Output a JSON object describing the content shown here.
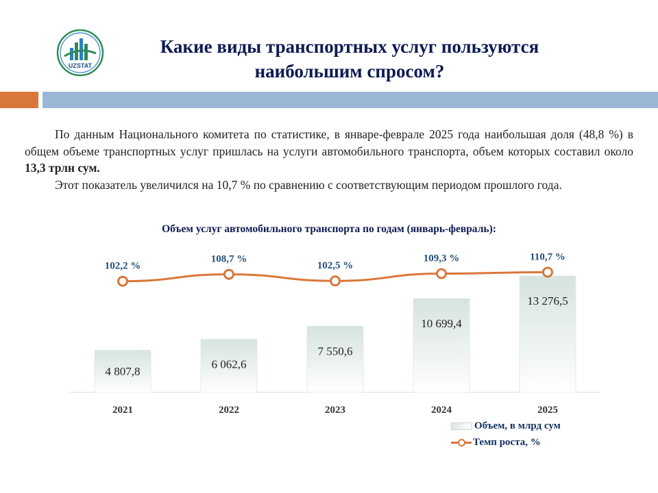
{
  "header": {
    "logo_text": "UZSTAT",
    "title_line1": "Какие виды транспортных услуг пользуются",
    "title_line2": "наибольшим спросом?"
  },
  "body": {
    "p1_part1": "По данным Национального комитета по статистике, в январе-феврале 2025 года наибольшая доля (48,8 %) в общем объеме транспортных услуг пришлась на услуги автомобильного транспорта, объем которых составил около ",
    "p1_bold": "13,3 трлн сум.",
    "p2": "Этот показатель увеличился на 10,7 % по сравнению с соответствующим периодом прошлого года."
  },
  "chart_data": {
    "type": "bar",
    "title": "Объем услуг автомобильного транспорта  по годам (январь-февраль):",
    "categories": [
      "2021",
      "2022",
      "2023",
      "2024",
      "2025"
    ],
    "series": [
      {
        "name": "Объем, в млрд сум",
        "type": "bar",
        "values": [
          4807.8,
          6062.6,
          7550.6,
          10699.4,
          13276.5
        ],
        "labels": [
          "4 807,8",
          "6 062,6",
          "7 550,6",
          "10 699,4",
          "13 276,5"
        ]
      },
      {
        "name": "Темп роста, %",
        "type": "line",
        "values": [
          102.2,
          108.7,
          102.5,
          109.3,
          110.7
        ],
        "labels": [
          "102,2 %",
          "108,7 %",
          "102,5 %",
          "109,3 %",
          "110,7 %"
        ]
      }
    ],
    "colors": {
      "bar_fill_top": "#dbe7e3",
      "line": "#d9773a",
      "label_blue": "#1f4e79"
    },
    "legend": "bottom-right"
  }
}
